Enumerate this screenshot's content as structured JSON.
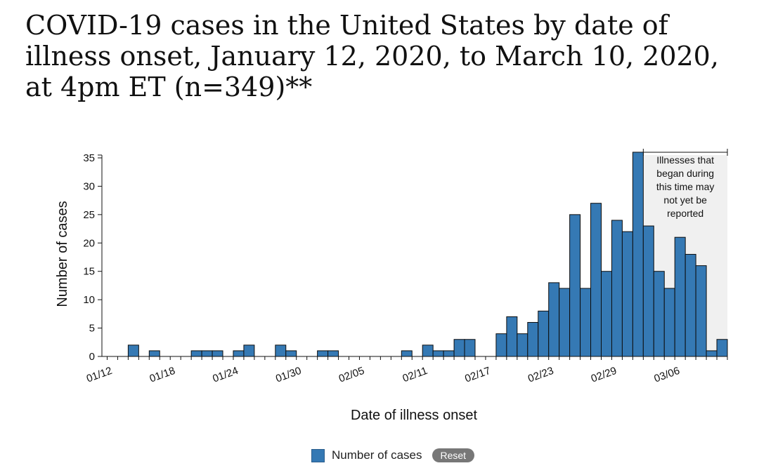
{
  "chart_data": {
    "type": "bar",
    "title": "COVID-19 cases in the United States by date of illness onset, January 12, 2020, to March 10, 2020, at 4pm ET (n=349)**",
    "xlabel": "Date of illness onset",
    "ylabel": "Number of cases",
    "ylim": [
      0,
      35
    ],
    "yticks": [
      "0",
      "5",
      "10",
      "15",
      "20",
      "25",
      "30",
      "35"
    ],
    "xtick_labels": [
      "01/12",
      "01/18",
      "01/24",
      "01/30",
      "02/05",
      "02/11",
      "02/17",
      "02/23",
      "02/29",
      "03/06"
    ],
    "categories": [
      "01/12",
      "01/13",
      "01/14",
      "01/15",
      "01/16",
      "01/17",
      "01/18",
      "01/19",
      "01/20",
      "01/21",
      "01/22",
      "01/23",
      "01/24",
      "01/25",
      "01/26",
      "01/27",
      "01/28",
      "01/29",
      "01/30",
      "01/31",
      "02/01",
      "02/02",
      "02/03",
      "02/04",
      "02/05",
      "02/06",
      "02/07",
      "02/08",
      "02/09",
      "02/10",
      "02/11",
      "02/12",
      "02/13",
      "02/14",
      "02/15",
      "02/16",
      "02/17",
      "02/18",
      "02/19",
      "02/20",
      "02/21",
      "02/22",
      "02/23",
      "02/24",
      "02/25",
      "02/26",
      "02/27",
      "02/28",
      "02/29",
      "03/01",
      "03/02",
      "03/03",
      "03/04",
      "03/05",
      "03/06",
      "03/07",
      "03/08",
      "03/09",
      "03/10"
    ],
    "series": [
      {
        "name": "Number of cases",
        "color": "#3579b4",
        "values": [
          0,
          0,
          2,
          0,
          1,
          0,
          0,
          0,
          1,
          1,
          1,
          0,
          1,
          2,
          0,
          0,
          2,
          1,
          0,
          0,
          1,
          1,
          0,
          0,
          0,
          0,
          0,
          0,
          1,
          0,
          2,
          1,
          1,
          3,
          3,
          0,
          0,
          4,
          7,
          4,
          6,
          8,
          13,
          12,
          25,
          12,
          27,
          15,
          24,
          22,
          36,
          23,
          15,
          12,
          21,
          18,
          16,
          1,
          3
        ]
      }
    ],
    "shaded_region": {
      "start": "03/03",
      "end": "03/10",
      "label_lines": [
        "Illnesses that",
        "began during",
        "this time may",
        "not yet be",
        "reported"
      ],
      "color": "#f0f0f0"
    },
    "grid": false,
    "legend": "bottom-center"
  },
  "legend": {
    "label": "Number of cases",
    "reset_label": "Reset"
  }
}
